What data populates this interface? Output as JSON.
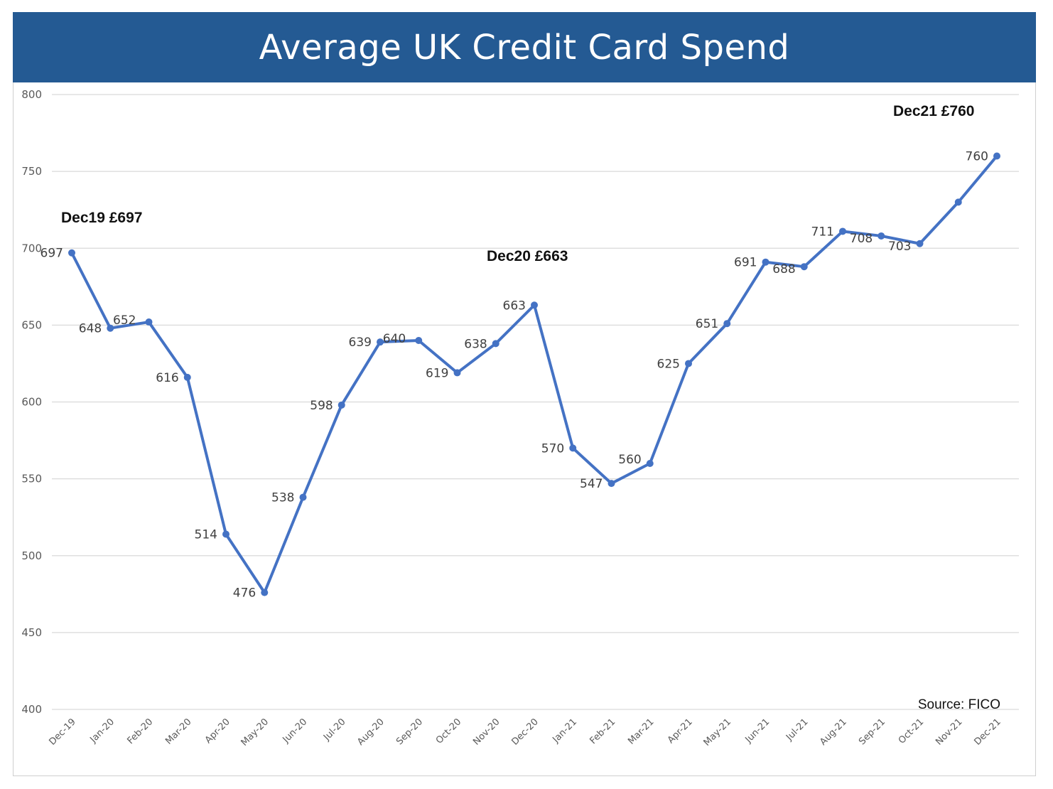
{
  "title": "Average UK Credit Card Spend",
  "colors": {
    "header_bg": "#245a93",
    "line": "#4472c4",
    "grid": "#d9d9d9"
  },
  "chart_data": {
    "type": "line",
    "title": "Average UK Credit Card Spend",
    "categories": [
      "Dec-19",
      "Jan-20",
      "Feb-20",
      "Mar-20",
      "Apr-20",
      "May-20",
      "Jun-20",
      "Jul-20",
      "Aug-20",
      "Sep-20",
      "Oct-20",
      "Nov-20",
      "Dec-20",
      "Jan-21",
      "Feb-21",
      "Mar-21",
      "Apr-21",
      "May-21",
      "Jun-21",
      "Jul-21",
      "Aug-21",
      "Sep-21",
      "Oct-21",
      "Nov-21",
      "Dec-21"
    ],
    "series": [
      {
        "values": [
          697,
          648,
          652,
          616,
          514,
          476,
          538,
          598,
          639,
          640,
          619,
          638,
          663,
          570,
          547,
          560,
          625,
          651,
          691,
          688,
          711,
          708,
          703,
          730,
          760
        ],
        "labels": [
          "697",
          "648",
          "652",
          "616",
          "514",
          "476",
          "538",
          "598",
          "639",
          "640",
          "619",
          "638",
          "663",
          "570",
          "547",
          "560",
          "625",
          "651",
          "691",
          "688",
          "711",
          "708",
          "703",
          "",
          "760"
        ]
      }
    ],
    "ylim": [
      400,
      800
    ],
    "yticks": [
      400,
      450,
      500,
      550,
      600,
      650,
      700,
      750,
      800
    ],
    "grid": true,
    "annotations": [
      {
        "text": "Dec19 £697",
        "category": "Dec-19"
      },
      {
        "text": "Dec20 £663",
        "category": "Dec-20"
      },
      {
        "text": "Dec21 £760",
        "category": "Dec-21"
      }
    ],
    "source": "Source: FICO"
  }
}
